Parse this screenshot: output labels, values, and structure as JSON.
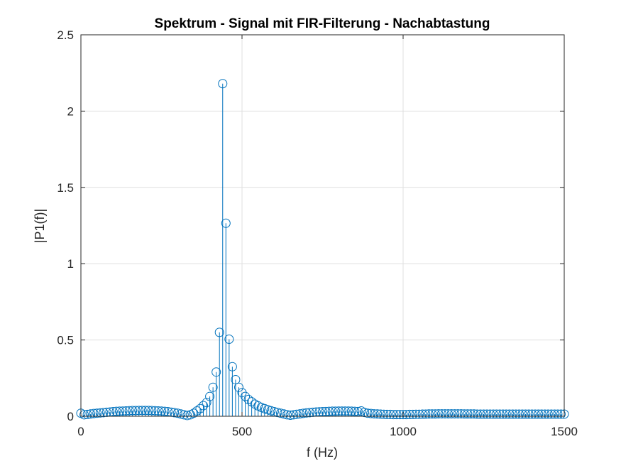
{
  "chart_data": {
    "type": "stem",
    "title": "Spektrum - Signal mit FIR-Filterung - Nachabtastung",
    "xlabel": "f (Hz)",
    "ylabel": "|P1(f)|",
    "xlim": [
      0,
      1500
    ],
    "ylim": [
      0,
      2.5
    ],
    "xticks": [
      0,
      500,
      1000,
      1500
    ],
    "xtick_labels": [
      "0",
      "500",
      "1000",
      "1500"
    ],
    "yticks": [
      0,
      0.5,
      1,
      1.5,
      2,
      2.5
    ],
    "ytick_labels": [
      "0",
      "0.5",
      "1",
      "1.5",
      "2",
      "2.5"
    ],
    "grid": true,
    "color": "#0072BD",
    "series": [
      {
        "x": [
          0,
          10,
          20,
          30,
          40,
          50,
          60,
          70,
          80,
          90,
          100,
          110,
          120,
          130,
          140,
          150,
          160,
          170,
          180,
          190,
          200,
          210,
          220,
          230,
          240,
          250,
          260,
          270,
          280,
          290,
          300,
          310,
          320,
          330,
          340,
          350,
          360,
          370,
          380,
          390,
          400,
          410,
          420,
          430,
          440,
          450,
          460,
          470,
          480,
          490,
          500,
          510,
          520,
          530,
          540,
          550,
          560,
          570,
          580,
          590,
          600,
          610,
          620,
          630,
          640,
          650,
          660,
          670,
          680,
          690,
          700,
          710,
          720,
          730,
          740,
          750,
          760,
          770,
          780,
          790,
          800,
          810,
          820,
          830,
          840,
          850,
          860,
          870,
          880,
          890,
          900,
          910,
          920,
          930,
          940,
          950,
          960,
          970,
          980,
          990,
          1000,
          1010,
          1020,
          1030,
          1040,
          1050,
          1060,
          1070,
          1080,
          1090,
          1100,
          1110,
          1120,
          1130,
          1140,
          1150,
          1160,
          1170,
          1180,
          1190,
          1200,
          1210,
          1220,
          1230,
          1240,
          1250,
          1260,
          1270,
          1280,
          1290,
          1300,
          1310,
          1320,
          1330,
          1340,
          1350,
          1360,
          1370,
          1380,
          1390,
          1400,
          1410,
          1420,
          1430,
          1440,
          1450,
          1460,
          1470,
          1480,
          1490,
          1500
        ],
        "y": [
          0.02,
          0.01,
          0.012,
          0.015,
          0.018,
          0.02,
          0.022,
          0.024,
          0.026,
          0.028,
          0.03,
          0.032,
          0.033,
          0.034,
          0.035,
          0.036,
          0.037,
          0.037,
          0.038,
          0.038,
          0.038,
          0.038,
          0.037,
          0.036,
          0.035,
          0.034,
          0.032,
          0.03,
          0.027,
          0.024,
          0.02,
          0.015,
          0.01,
          0.005,
          0.01,
          0.02,
          0.035,
          0.05,
          0.07,
          0.09,
          0.13,
          0.19,
          0.29,
          0.55,
          2.18,
          1.265,
          0.505,
          0.325,
          0.24,
          0.19,
          0.155,
          0.13,
          0.11,
          0.095,
          0.08,
          0.068,
          0.058,
          0.05,
          0.043,
          0.036,
          0.03,
          0.025,
          0.02,
          0.015,
          0.01,
          0.007,
          0.01,
          0.013,
          0.016,
          0.019,
          0.022,
          0.024,
          0.026,
          0.028,
          0.029,
          0.03,
          0.031,
          0.032,
          0.033,
          0.033,
          0.034,
          0.034,
          0.034,
          0.034,
          0.033,
          0.032,
          0.031,
          0.035,
          0.025,
          0.02,
          0.018,
          0.016,
          0.015,
          0.014,
          0.013,
          0.012,
          0.012,
          0.011,
          0.011,
          0.011,
          0.011,
          0.011,
          0.012,
          0.012,
          0.013,
          0.013,
          0.014,
          0.014,
          0.015,
          0.015,
          0.015,
          0.016,
          0.016,
          0.016,
          0.016,
          0.016,
          0.016,
          0.016,
          0.016,
          0.015,
          0.015,
          0.015,
          0.015,
          0.014,
          0.014,
          0.014,
          0.014,
          0.014,
          0.014,
          0.014,
          0.014,
          0.014,
          0.014,
          0.014,
          0.014,
          0.014,
          0.014,
          0.014,
          0.014,
          0.014,
          0.014,
          0.014,
          0.014,
          0.014,
          0.014,
          0.014,
          0.014,
          0.014,
          0.014,
          0.014,
          0.014
        ]
      }
    ]
  }
}
